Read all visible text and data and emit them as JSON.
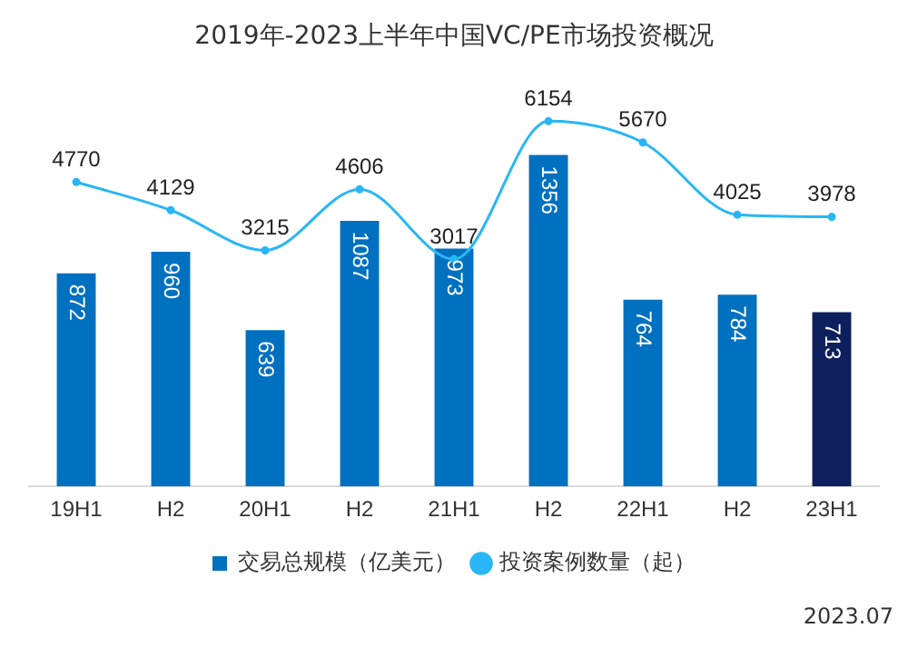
{
  "chart_data": {
    "type": "bar",
    "title": "2019年-2023上半年中国VC/PE市场投资概况",
    "categories": [
      "19H1",
      "H2",
      "20H1",
      "H2",
      "21H1",
      "H2",
      "22H1",
      "H2",
      "23H1"
    ],
    "series": [
      {
        "name": "交易总规模（亿美元）",
        "colors": [
          "#0070c0",
          "#0070c0",
          "#0070c0",
          "#0070c0",
          "#0070c0",
          "#0070c0",
          "#0070c0",
          "#0070c0",
          "#0d1f5c"
        ],
        "values": [
          872,
          960,
          639,
          1087,
          973,
          1356,
          764,
          784,
          713
        ]
      },
      {
        "name": "投资案例数量（起）",
        "type": "line",
        "axis": "y2",
        "color": "#29b6f6",
        "values": [
          4770,
          4129,
          3215,
          4606,
          3017,
          6154,
          5670,
          4025,
          3978
        ]
      }
    ],
    "data_labels": true,
    "legend": "bottom",
    "grid": false,
    "marker": "circle",
    "line_style": "solid",
    "annotations": [
      "2023.07"
    ]
  }
}
